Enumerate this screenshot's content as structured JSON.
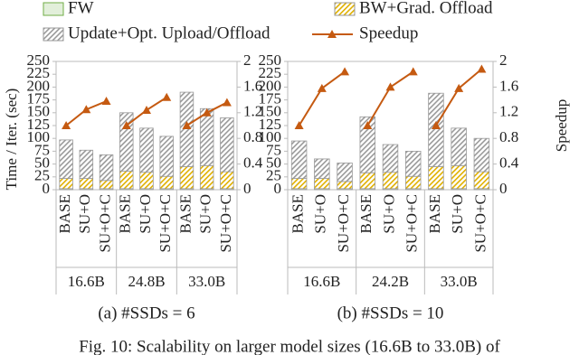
{
  "chart_data": [
    {
      "type": "bar",
      "caption": "(a) #SSDs = 6",
      "ylabel": "Time / Iter. (sec)",
      "categories": [
        "BASE",
        "SU+O",
        "SU+O+C",
        "BASE",
        "SU+O",
        "SU+O+C",
        "BASE",
        "SU+O",
        "SU+O+C"
      ],
      "groups": [
        "16.6B",
        "24.8B",
        "33.0B"
      ],
      "ylim": [
        0,
        250
      ],
      "yticks": [
        0,
        25,
        50,
        75,
        100,
        125,
        150,
        175,
        200,
        225,
        250
      ],
      "y2lim": [
        0,
        2
      ],
      "y2ticks": [
        0,
        0.4,
        0.8,
        1.2,
        1.6,
        2
      ],
      "series": [
        {
          "name": "FW",
          "color": "#e2efda",
          "values": [
            2,
            2,
            2,
            2,
            2,
            2,
            2,
            2,
            2
          ]
        },
        {
          "name": "BW+Grad. Offload",
          "color": "#ffd966",
          "hatch": true,
          "values": [
            20,
            20,
            16,
            34,
            32,
            24,
            43,
            45,
            33
          ]
        },
        {
          "name": "Update+Opt. Upload/Offload",
          "color": "#d9d9d9",
          "hatch": true,
          "values": [
            75,
            55,
            50,
            114,
            86,
            78,
            145,
            111,
            105
          ]
        },
        {
          "name": "Speedup",
          "type": "line",
          "axis": "y2",
          "color": "#c55a11",
          "values": [
            1,
            1.25,
            1.38,
            1,
            1.24,
            1.44,
            1,
            1.2,
            1.36
          ]
        }
      ]
    },
    {
      "type": "bar",
      "caption": "(b) #SSDs = 10",
      "y2label": "Speedup",
      "categories": [
        "BASE",
        "SU+O",
        "SU+O+C",
        "BASE",
        "SU+O",
        "SU+O+C",
        "BASE",
        "SU+O",
        "SU+O+C"
      ],
      "groups": [
        "16.6B",
        "24.2B",
        "33.0B"
      ],
      "ylim": [
        0,
        250
      ],
      "yticks": [
        0,
        25,
        50,
        75,
        100,
        125,
        150,
        175,
        200,
        225,
        250
      ],
      "y2lim": [
        0,
        2
      ],
      "y2ticks": [
        0,
        0.4,
        0.8,
        1.2,
        1.6,
        2
      ],
      "series": [
        {
          "color": "#e2efda",
          "values": [
            2,
            2,
            2,
            2,
            2,
            2,
            2,
            2,
            2
          ]
        },
        {
          "color": "#ffd966",
          "hatch": true,
          "values": [
            20,
            20,
            14,
            31,
            32,
            24,
            43,
            45,
            33
          ]
        },
        {
          "color": "#d9d9d9",
          "hatch": true,
          "values": [
            73,
            38,
            36,
            109,
            54,
            49,
            143,
            73,
            65
          ]
        },
        {
          "type": "line",
          "axis": "y2",
          "color": "#c55a11",
          "values": [
            1,
            1.58,
            1.84,
            1,
            1.6,
            1.84,
            1,
            1.58,
            1.88
          ]
        }
      ]
    }
  ],
  "figure_caption": "Fig. 10: Scalability on larger model sizes (16.6B to 33.0B) of"
}
